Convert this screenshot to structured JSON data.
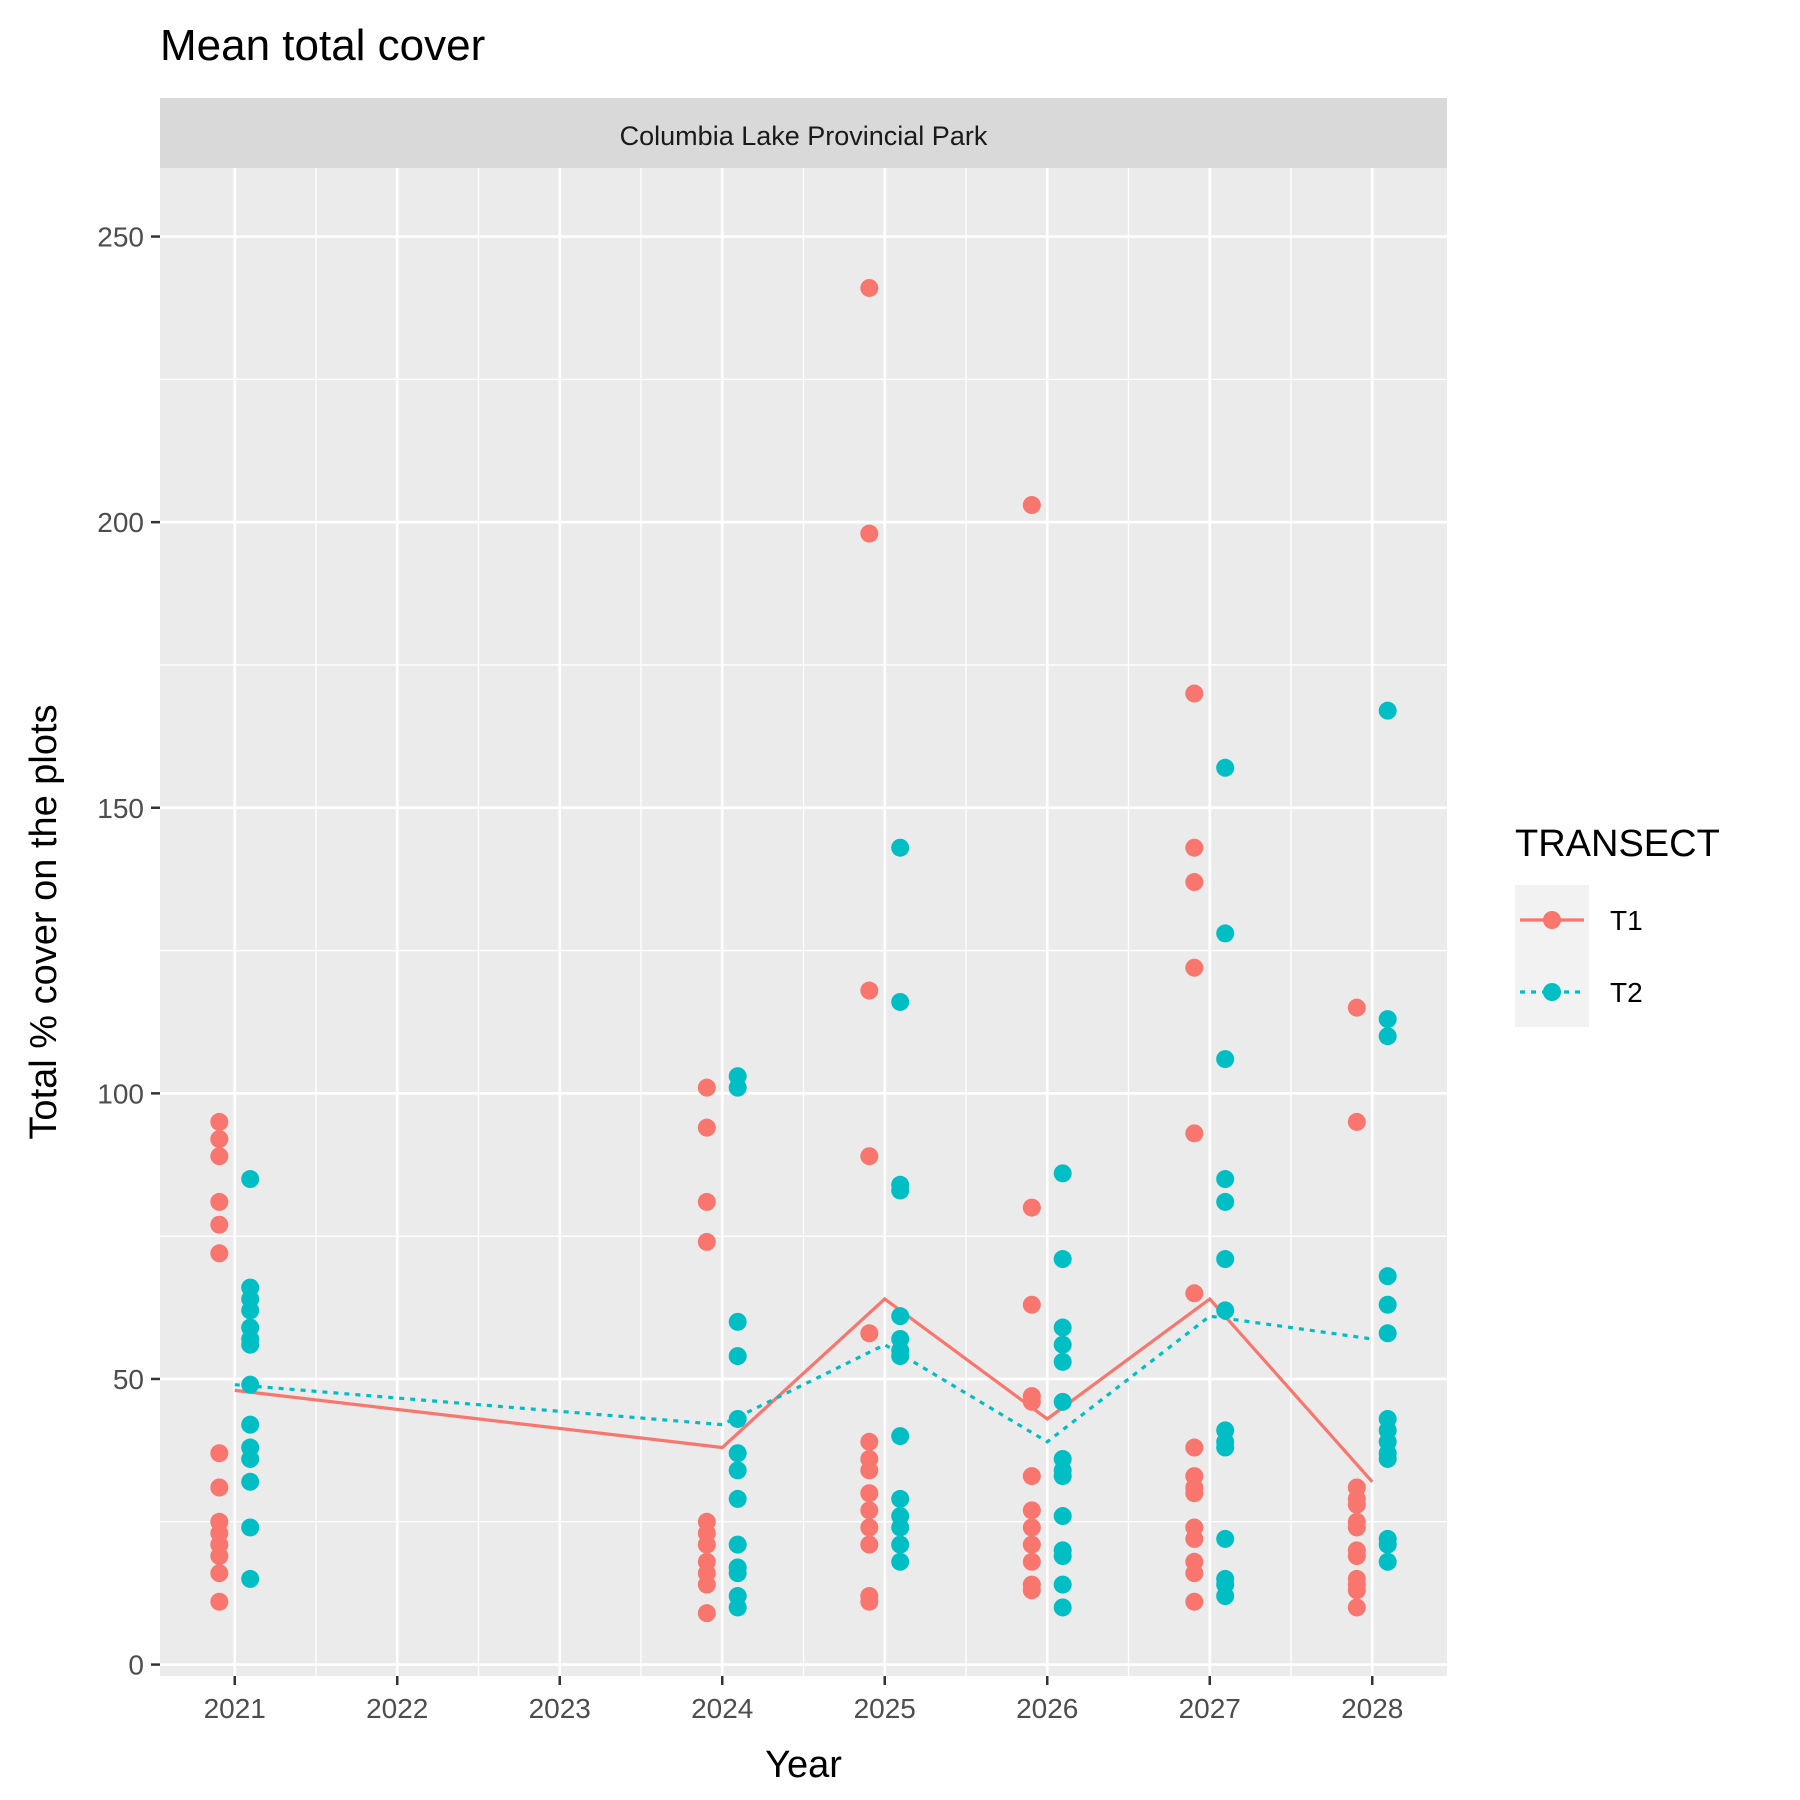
{
  "chart_data": {
    "type": "scatter",
    "title": "Mean total cover",
    "facet_label": "Columbia Lake Provincial Park",
    "xlabel": "Year",
    "ylabel": "Total % cover on the plots",
    "xlim": [
      2020.54,
      2028.46
    ],
    "ylim": [
      -2,
      262
    ],
    "x_ticks": [
      2021,
      2022,
      2023,
      2024,
      2025,
      2026,
      2027,
      2028
    ],
    "y_ticks": [
      0,
      50,
      100,
      150,
      200,
      250
    ],
    "grid": true,
    "legend": {
      "title": "TRANSECT",
      "position": "right"
    },
    "series": [
      {
        "name": "T1",
        "color": "#F8766D",
        "line_style": "solid",
        "mean_line": [
          {
            "x": 2021,
            "y": 48
          },
          {
            "x": 2024,
            "y": 38
          },
          {
            "x": 2025,
            "y": 64
          },
          {
            "x": 2026,
            "y": 43
          },
          {
            "x": 2027,
            "y": 64
          },
          {
            "x": 2028,
            "y": 32
          }
        ],
        "points": [
          {
            "x": 2021,
            "y": [
              95,
              92,
              89,
              81,
              77,
              72,
              37,
              31,
              25,
              23,
              21,
              19,
              16,
              11
            ]
          },
          {
            "x": 2024,
            "y": [
              101,
              94,
              81,
              74,
              25,
              23,
              21,
              18,
              16,
              14,
              9
            ]
          },
          {
            "x": 2025,
            "y": [
              241,
              198,
              118,
              89,
              58,
              39,
              36,
              34,
              30,
              27,
              24,
              21,
              12,
              11
            ]
          },
          {
            "x": 2026,
            "y": [
              203,
              80,
              63,
              47,
              46,
              33,
              27,
              24,
              21,
              18,
              14,
              13
            ]
          },
          {
            "x": 2027,
            "y": [
              170,
              143,
              137,
              122,
              93,
              65,
              38,
              33,
              31,
              30,
              24,
              22,
              18,
              16,
              11
            ]
          },
          {
            "x": 2028,
            "y": [
              115,
              95,
              31,
              29,
              28,
              25,
              24,
              20,
              19,
              15,
              14,
              13,
              10
            ]
          }
        ]
      },
      {
        "name": "T2",
        "color": "#00BFC4",
        "line_style": "dashed",
        "mean_line": [
          {
            "x": 2021,
            "y": 49
          },
          {
            "x": 2024,
            "y": 42
          },
          {
            "x": 2025,
            "y": 56
          },
          {
            "x": 2026,
            "y": 39
          },
          {
            "x": 2027,
            "y": 61
          },
          {
            "x": 2028,
            "y": 57
          }
        ],
        "points": [
          {
            "x": 2021,
            "y": [
              85,
              66,
              64,
              62,
              59,
              57,
              56,
              49,
              42,
              38,
              36,
              32,
              24,
              15
            ]
          },
          {
            "x": 2024,
            "y": [
              103,
              101,
              60,
              54,
              43,
              37,
              34,
              29,
              21,
              17,
              16,
              12,
              10
            ]
          },
          {
            "x": 2025,
            "y": [
              143,
              116,
              84,
              83,
              61,
              57,
              55,
              54,
              40,
              29,
              26,
              24,
              21,
              18
            ]
          },
          {
            "x": 2026,
            "y": [
              86,
              71,
              59,
              56,
              53,
              46,
              36,
              34,
              33,
              26,
              20,
              19,
              14,
              10
            ]
          },
          {
            "x": 2027,
            "y": [
              157,
              128,
              106,
              85,
              81,
              71,
              62,
              41,
              39,
              38,
              22,
              15,
              14,
              12
            ]
          },
          {
            "x": 2028,
            "y": [
              167,
              113,
              110,
              68,
              63,
              58,
              43,
              41,
              39,
              37,
              36,
              22,
              21,
              18
            ]
          }
        ]
      }
    ]
  }
}
